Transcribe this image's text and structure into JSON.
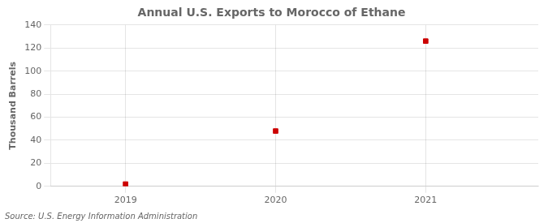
{
  "chart_data": {
    "type": "scatter",
    "title": "Annual U.S. Exports to Morocco of Ethane",
    "ylabel": "Thousand Barrels",
    "source": "Source: U.S. Energy Information Administration",
    "x": [
      2019,
      2020,
      2021
    ],
    "values": [
      2,
      48,
      126
    ],
    "color": "#cc0000",
    "marker": "square",
    "xlim": [
      2018.5,
      2021.75
    ],
    "xticks": [
      2019,
      2020,
      2021
    ],
    "ylim": [
      0,
      140
    ],
    "yticks": [
      0,
      20,
      40,
      60,
      80,
      100,
      120,
      140
    ],
    "grid": true
  }
}
